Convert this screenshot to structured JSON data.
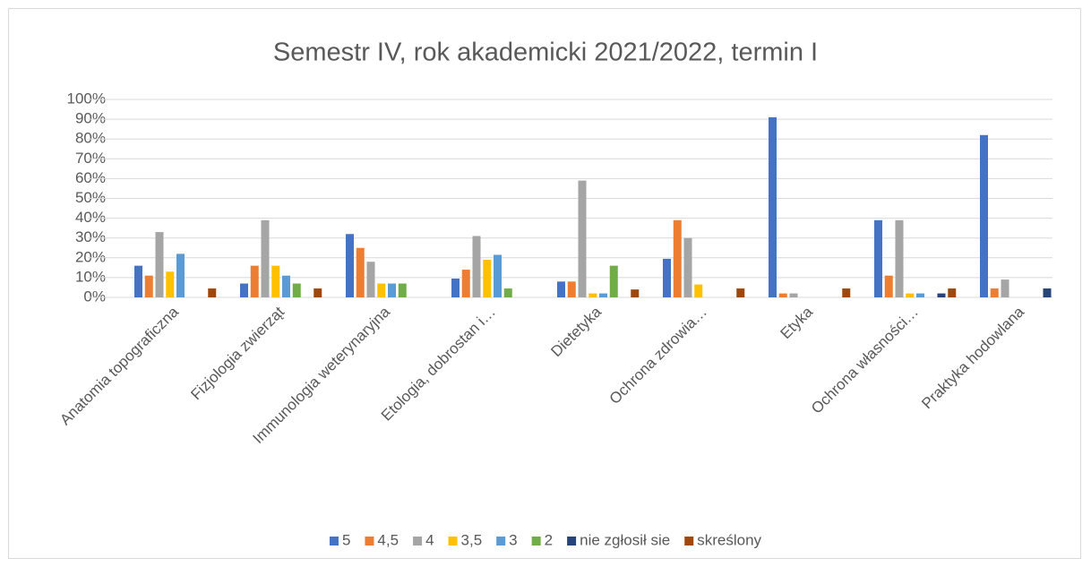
{
  "chart_data": {
    "type": "bar",
    "title": "Semestr IV, rok akademicki 2021/2022, termin I",
    "categories": [
      "Anatomia topograficzna",
      "Fizjologia zwierząt",
      "Immunologia weterynaryjna",
      "Etologia, dobrostan i…",
      "Dietetyka",
      "Ochrona zdrowia…",
      "Etyka",
      "Ochrona własności…",
      "Praktyka hodowlana"
    ],
    "series": [
      {
        "name": "5",
        "color": "#4472c4",
        "values": [
          16,
          7,
          32,
          9.5,
          8,
          19.5,
          91,
          39,
          82
        ]
      },
      {
        "name": "4,5",
        "color": "#ed7d31",
        "values": [
          11,
          16,
          25,
          14,
          8,
          39,
          2,
          11,
          4.5
        ]
      },
      {
        "name": "4",
        "color": "#a5a5a5",
        "values": [
          33,
          39,
          18,
          31,
          59,
          30,
          2,
          39,
          9
        ]
      },
      {
        "name": "3,5",
        "color": "#ffc000",
        "values": [
          13,
          16,
          7,
          19,
          2,
          6.5,
          0,
          2,
          0
        ]
      },
      {
        "name": "3",
        "color": "#5b9bd5",
        "values": [
          22,
          11,
          7,
          21.5,
          2,
          0,
          0,
          2,
          0
        ]
      },
      {
        "name": "2",
        "color": "#70ad47",
        "values": [
          0,
          7,
          7,
          4.5,
          16,
          0,
          0,
          0,
          0
        ]
      },
      {
        "name": "nie zgłosił sie",
        "color": "#264478",
        "values": [
          0,
          0,
          0,
          0,
          0,
          0,
          0,
          2,
          4.5
        ]
      },
      {
        "name": "skreślony",
        "color": "#9e480e",
        "values": [
          4.5,
          4.5,
          0,
          0,
          4,
          4.5,
          4.5,
          4.5,
          0
        ]
      }
    ],
    "ylim": [
      0,
      100
    ],
    "yticks": [
      {
        "value": 0,
        "label": "0%"
      },
      {
        "value": 10,
        "label": "10%"
      },
      {
        "value": 20,
        "label": "20%"
      },
      {
        "value": 30,
        "label": "30%"
      },
      {
        "value": 40,
        "label": "40%"
      },
      {
        "value": 50,
        "label": "50%"
      },
      {
        "value": 60,
        "label": "60%"
      },
      {
        "value": 70,
        "label": "70%"
      },
      {
        "value": 80,
        "label": "80%"
      },
      {
        "value": 90,
        "label": "90%"
      },
      {
        "value": 100,
        "label": "100%"
      }
    ],
    "grid": true,
    "legend": "bottom"
  }
}
